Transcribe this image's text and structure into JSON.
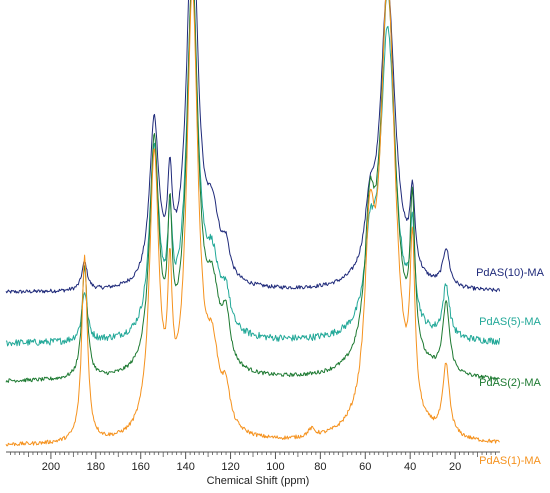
{
  "chart_data": {
    "type": "line",
    "title": "",
    "xlabel": "Chemical Shift (ppm)",
    "ylabel": "",
    "xlim": [
      0,
      220
    ],
    "x_reversed": true,
    "x_ticks": [
      200,
      180,
      160,
      140,
      120,
      100,
      80,
      60,
      40,
      20
    ],
    "grid": false,
    "legend": "labels next to each trace on the right",
    "series": [
      {
        "name": "PdAS(10)-MA",
        "color": "#1f2a7a",
        "offset": 3,
        "peaks": [
          [
            185,
            0.18,
            1.5
          ],
          [
            154,
            1.05,
            2.5
          ],
          [
            147,
            0.55,
            1.2
          ],
          [
            137,
            2.4,
            3.0
          ],
          [
            128,
            0.4,
            3.5
          ],
          [
            122,
            0.18,
            2.0
          ],
          [
            58,
            0.35,
            2.5
          ],
          [
            50,
            1.95,
            4.0
          ],
          [
            39,
            0.48,
            1.3
          ],
          [
            24,
            0.24,
            1.8
          ]
        ]
      },
      {
        "name": "PdAS(5)-MA",
        "color": "#22a898",
        "offset": 2,
        "peaks": [
          [
            185,
            0.32,
            1.5
          ],
          [
            154,
            1.2,
            2.5
          ],
          [
            147,
            0.6,
            1.2
          ],
          [
            137,
            2.3,
            3.0
          ],
          [
            128,
            0.4,
            3.5
          ],
          [
            122,
            0.22,
            2.0
          ],
          [
            58,
            0.45,
            2.5
          ],
          [
            50,
            2.0,
            4.0
          ],
          [
            39,
            0.58,
            1.3
          ],
          [
            24,
            0.33,
            1.8
          ]
        ]
      },
      {
        "name": "PdAS(2)-MA",
        "color": "#1e7a32",
        "offset": 1,
        "peaks": [
          [
            185,
            0.72,
            1.5
          ],
          [
            154,
            1.48,
            2.5
          ],
          [
            147,
            0.82,
            1.2
          ],
          [
            137,
            2.55,
            3.0
          ],
          [
            128,
            0.45,
            3.5
          ],
          [
            122,
            0.3,
            2.0
          ],
          [
            58,
            0.8,
            2.5
          ],
          [
            50,
            2.45,
            4.0
          ],
          [
            39,
            0.95,
            1.3
          ],
          [
            24,
            0.45,
            1.8
          ]
        ]
      },
      {
        "name": "PdAS(1)-MA",
        "color": "#f5921e",
        "offset": 0,
        "peaks": [
          [
            185,
            1.2,
            1.5
          ],
          [
            154,
            1.8,
            2.5
          ],
          [
            147,
            0.82,
            1.2
          ],
          [
            137,
            2.85,
            3.0
          ],
          [
            128,
            0.45,
            3.5
          ],
          [
            122,
            0.22,
            2.0
          ],
          [
            84,
            0.05,
            2.0
          ],
          [
            58,
            1.05,
            2.5
          ],
          [
            50,
            2.9,
            4.0
          ],
          [
            39,
            1.05,
            1.3
          ],
          [
            24,
            0.45,
            1.8
          ]
        ]
      }
    ]
  }
}
